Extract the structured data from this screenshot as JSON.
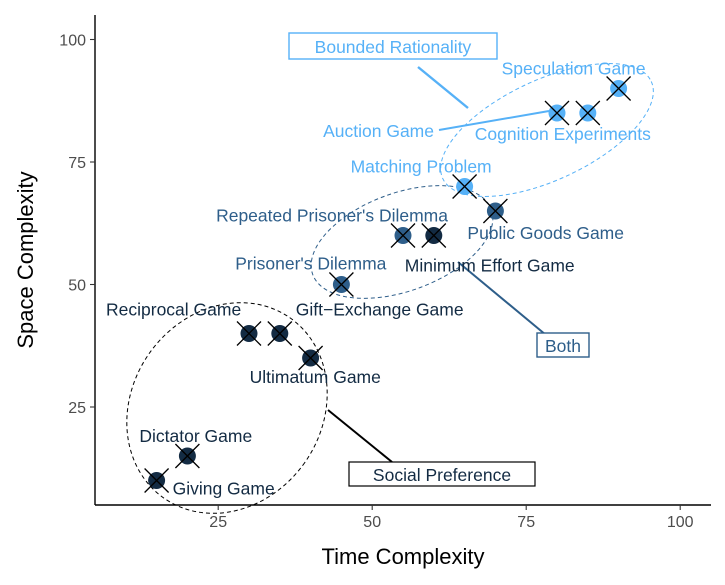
{
  "chart_data": {
    "type": "scatter",
    "title": "",
    "xlabel": "Time Complexity",
    "ylabel": "Space Complexity",
    "xlim": [
      5,
      105
    ],
    "ylim": [
      5,
      105
    ],
    "x_ticks": [
      25,
      50,
      75,
      100
    ],
    "y_ticks": [
      25,
      50,
      75,
      100
    ],
    "x_tick_labels": [
      "25",
      "50",
      "75",
      "100"
    ],
    "y_tick_labels": [
      "25",
      "50",
      "75",
      "100"
    ],
    "grid": false,
    "colors": {
      "Social Preference": "#132B43",
      "Both": "#2E5E8A",
      "Bounded Rationality": "#56B1F7"
    },
    "points": [
      {
        "label": "Giving Game",
        "x": 15,
        "y": 10,
        "group": "Social Preference"
      },
      {
        "label": "Dictator Game",
        "x": 20,
        "y": 15,
        "group": "Social Preference"
      },
      {
        "label": "Reciprocal Game",
        "x": 30,
        "y": 40,
        "group": "Social Preference"
      },
      {
        "label": "Gift−Exchange Game",
        "x": 35,
        "y": 40,
        "group": "Social Preference"
      },
      {
        "label": "Ultimatum Game",
        "x": 40,
        "y": 35,
        "group": "Social Preference"
      },
      {
        "label": "Prisoner's Dilemma",
        "x": 45,
        "y": 50,
        "group": "Both"
      },
      {
        "label": "Repeated Prisoner's Dilemma",
        "x": 55,
        "y": 60,
        "group": "Both"
      },
      {
        "label": "Minimum Effort Game",
        "x": 60,
        "y": 60,
        "group": "Social Preference"
      },
      {
        "label": "Matching Problem",
        "x": 65,
        "y": 70,
        "group": "Bounded Rationality"
      },
      {
        "label": "Public Goods Game",
        "x": 70,
        "y": 65,
        "group": "Both"
      },
      {
        "label": "Auction Game",
        "x": 80,
        "y": 85,
        "group": "Bounded Rationality"
      },
      {
        "label": "Cognition Experiments",
        "x": 85,
        "y": 85,
        "group": "Bounded Rationality"
      },
      {
        "label": "Speculation Game",
        "x": 90,
        "y": 90,
        "group": "Bounded Rationality"
      }
    ],
    "group_labels": {
      "social_preference": "Social Preference",
      "both": "Both",
      "bounded_rationality": "Bounded Rationality"
    }
  }
}
